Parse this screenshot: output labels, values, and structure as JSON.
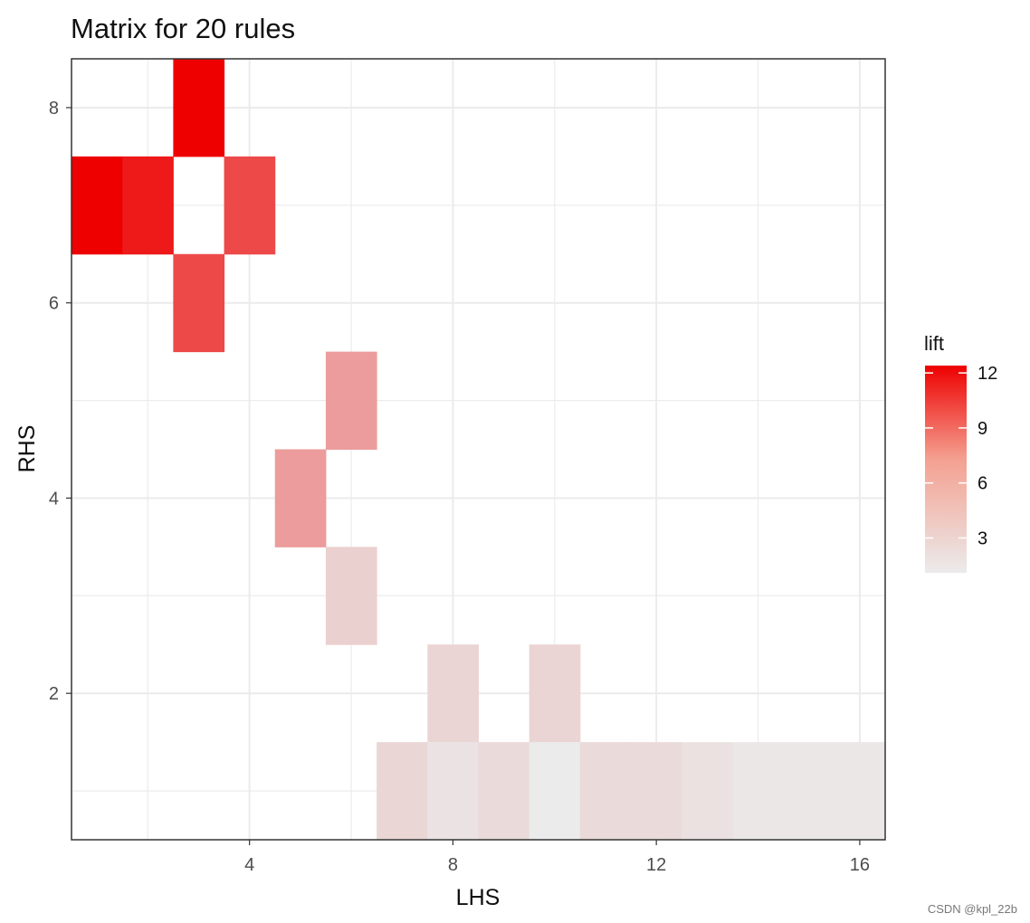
{
  "chart_data": {
    "type": "heatmap",
    "title": "Matrix for 20 rules",
    "xlabel": "LHS",
    "ylabel": "RHS",
    "xlim": [
      0.5,
      16.5
    ],
    "ylim": [
      0.5,
      8.5
    ],
    "x_ticks": [
      4,
      8,
      12,
      16
    ],
    "y_ticks": [
      2,
      4,
      6,
      8
    ],
    "grid": true,
    "cells": [
      {
        "x": 3,
        "y": 8,
        "lift": 12.4
      },
      {
        "x": 1,
        "y": 7,
        "lift": 12.4
      },
      {
        "x": 2,
        "y": 7,
        "lift": 11.2
      },
      {
        "x": 4,
        "y": 7,
        "lift": 8.9
      },
      {
        "x": 3,
        "y": 6,
        "lift": 8.9
      },
      {
        "x": 6,
        "y": 5,
        "lift": 4.9
      },
      {
        "x": 5,
        "y": 4,
        "lift": 4.9
      },
      {
        "x": 6,
        "y": 3,
        "lift": 2.4
      },
      {
        "x": 8,
        "y": 2,
        "lift": 2.2
      },
      {
        "x": 10,
        "y": 2,
        "lift": 2.2
      },
      {
        "x": 7,
        "y": 1,
        "lift": 2.1
      },
      {
        "x": 8,
        "y": 1,
        "lift": 1.5
      },
      {
        "x": 9,
        "y": 1,
        "lift": 1.9
      },
      {
        "x": 10,
        "y": 1,
        "lift": 1.1
      },
      {
        "x": 11,
        "y": 1,
        "lift": 1.9
      },
      {
        "x": 12,
        "y": 1,
        "lift": 1.9
      },
      {
        "x": 13,
        "y": 1,
        "lift": 1.6
      },
      {
        "x": 14,
        "y": 1,
        "lift": 1.3
      },
      {
        "x": 15,
        "y": 1,
        "lift": 1.3
      },
      {
        "x": 16,
        "y": 1,
        "lift": 1.3
      }
    ],
    "legend": {
      "title": "lift",
      "placement": "right",
      "range": [
        1.1,
        12.4
      ],
      "ticks": [
        3,
        6,
        9,
        12
      ],
      "color_low": "#ebebeb",
      "color_high": "#ee0000"
    }
  },
  "watermark": "CSDN @kpl_22b"
}
